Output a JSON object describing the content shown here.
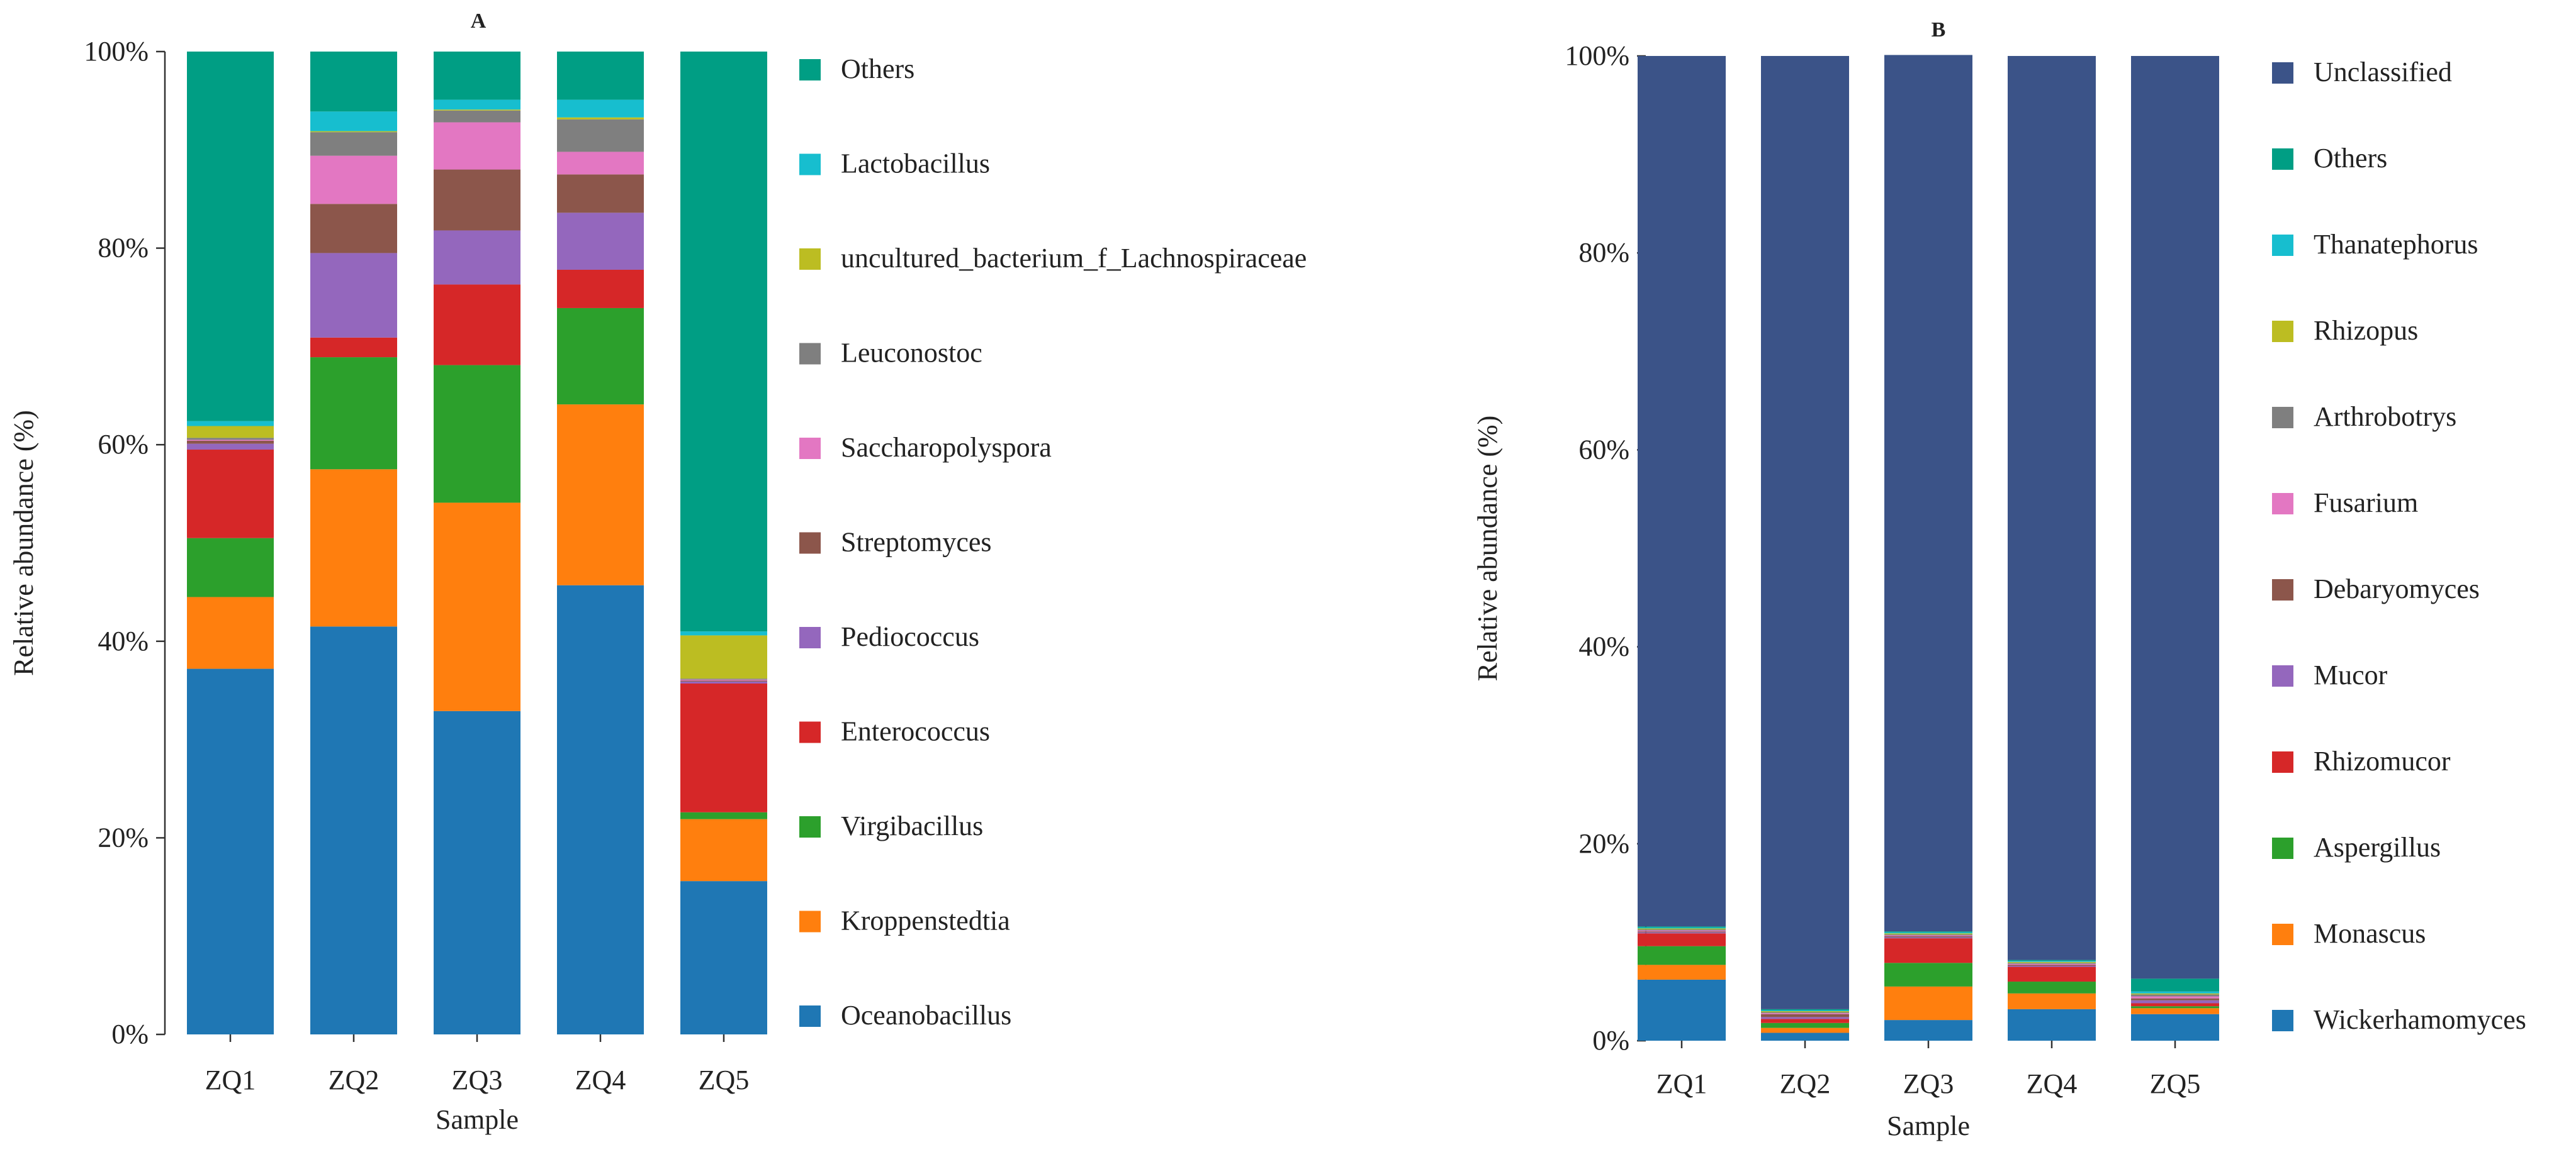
{
  "chart_data": [
    {
      "type": "bar",
      "stacked": true,
      "title": "A",
      "xlabel": "Sample",
      "ylabel": "Relative abundance (%)",
      "ylim": [
        0,
        100
      ],
      "yticks": [
        "0%",
        "20%",
        "40%",
        "60%",
        "80%",
        "100%"
      ],
      "legend_position": "right",
      "categories": [
        "ZQ1",
        "ZQ2",
        "ZQ3",
        "ZQ4",
        "ZQ5"
      ],
      "series": [
        {
          "name": "Oceanobacillus",
          "color": "#1f77b4",
          "values": [
            37.2,
            41.5,
            32.9,
            45.7,
            15.6
          ]
        },
        {
          "name": "Kroppenstedtia",
          "color": "#ff7f0e",
          "values": [
            7.3,
            16.0,
            21.2,
            18.4,
            6.3
          ]
        },
        {
          "name": "Virgibacillus",
          "color": "#2ca02c",
          "values": [
            6.0,
            11.4,
            14.0,
            9.8,
            0.7
          ]
        },
        {
          "name": "Enterococcus",
          "color": "#d62728",
          "values": [
            9.0,
            2.0,
            8.2,
            3.9,
            13.1
          ]
        },
        {
          "name": "Pediococcus",
          "color": "#9467bd",
          "values": [
            0.6,
            8.6,
            5.5,
            5.8,
            0.2
          ]
        },
        {
          "name": "Streptomyces",
          "color": "#8c564b",
          "values": [
            0.3,
            5.0,
            6.2,
            3.9,
            0.1
          ]
        },
        {
          "name": "Saccharopolyspora",
          "color": "#e377c2",
          "values": [
            0.1,
            4.9,
            4.8,
            2.3,
            0.1
          ]
        },
        {
          "name": "Leuconostoc",
          "color": "#7f7f7f",
          "values": [
            0.2,
            2.4,
            1.2,
            3.3,
            0.1
          ]
        },
        {
          "name": "uncultured_bacterium_f_Lachnospiraceae",
          "color": "#bcbd22",
          "values": [
            1.2,
            0.1,
            0.1,
            0.2,
            4.4
          ]
        },
        {
          "name": "Lactobacillus",
          "color": "#17becf",
          "values": [
            0.5,
            2.0,
            1.0,
            1.8,
            0.4
          ]
        },
        {
          "name": "Others",
          "color": "#009e84",
          "values": [
            37.6,
            6.1,
            4.9,
            4.9,
            59.0
          ]
        }
      ]
    },
    {
      "type": "bar",
      "stacked": true,
      "title": "B",
      "xlabel": "Sample",
      "ylabel": "Relative abundance (%)",
      "ylim": [
        0,
        100
      ],
      "yticks": [
        "0%",
        "20%",
        "40%",
        "60%",
        "80%",
        "100%"
      ],
      "legend_position": "right",
      "categories": [
        "ZQ1",
        "ZQ2",
        "ZQ3",
        "ZQ4",
        "ZQ5"
      ],
      "series": [
        {
          "name": "Wickerhamomyces",
          "color": "#1f77b4",
          "values": [
            6.2,
            0.8,
            2.1,
            3.2,
            2.7
          ]
        },
        {
          "name": "Monascus",
          "color": "#ff7f0e",
          "values": [
            1.5,
            0.5,
            3.4,
            1.6,
            0.6
          ]
        },
        {
          "name": "Aspergillus",
          "color": "#2ca02c",
          "values": [
            1.9,
            0.5,
            2.4,
            1.2,
            0.2
          ]
        },
        {
          "name": "Rhizomucor",
          "color": "#d62728",
          "values": [
            1.3,
            0.4,
            2.5,
            1.5,
            0.3
          ]
        },
        {
          "name": "Mucor",
          "color": "#9467bd",
          "values": [
            0.1,
            0.2,
            0.1,
            0.1,
            0.3
          ]
        },
        {
          "name": "Debaryomyces",
          "color": "#8c564b",
          "values": [
            0.1,
            0.3,
            0.1,
            0.1,
            0.2
          ]
        },
        {
          "name": "Fusarium",
          "color": "#e377c2",
          "values": [
            0.1,
            0.1,
            0.1,
            0.1,
            0.2
          ]
        },
        {
          "name": "Arthrobotrys",
          "color": "#7f7f7f",
          "values": [
            0.1,
            0.1,
            0.1,
            0.1,
            0.2
          ]
        },
        {
          "name": "Rhizopus",
          "color": "#bcbd22",
          "values": [
            0.1,
            0.1,
            0.1,
            0.1,
            0.1
          ]
        },
        {
          "name": "Thanatephorus",
          "color": "#17becf",
          "values": [
            0.1,
            0.1,
            0.1,
            0.1,
            0.2
          ]
        },
        {
          "name": "Others",
          "color": "#009e84",
          "values": [
            0.1,
            0.1,
            0.1,
            0.1,
            1.3
          ]
        },
        {
          "name": "Unclassified",
          "color": "#3b5388",
          "values": [
            88.4,
            96.8,
            89.0,
            91.8,
            93.7
          ]
        }
      ]
    }
  ]
}
